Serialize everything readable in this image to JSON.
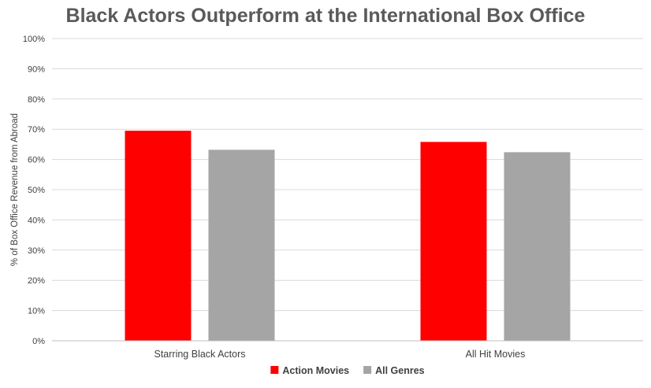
{
  "chart_data": {
    "type": "bar",
    "title": "Black Actors Outperform at the International Box Office",
    "xlabel": "",
    "ylabel": "% of Box Office Revenue from Abroad",
    "categories": [
      "Starring Black Actors",
      "All Hit Movies"
    ],
    "series": [
      {
        "name": "Action Movies",
        "values": [
          69.5,
          65.8
        ],
        "color": "#ff0000"
      },
      {
        "name": "All Genres",
        "values": [
          63.2,
          62.4
        ],
        "color": "#a5a5a5"
      }
    ],
    "ylim": [
      0,
      100
    ],
    "yticks": [
      "0%",
      "10%",
      "20%",
      "30%",
      "40%",
      "50%",
      "60%",
      "70%",
      "80%",
      "90%",
      "100%"
    ],
    "ytick_values": [
      0,
      10,
      20,
      30,
      40,
      50,
      60,
      70,
      80,
      90,
      100
    ],
    "grid": true,
    "gridline_color": "#d9d9d9",
    "legend_position": "bottom",
    "title_color": "#5a5a5a"
  }
}
